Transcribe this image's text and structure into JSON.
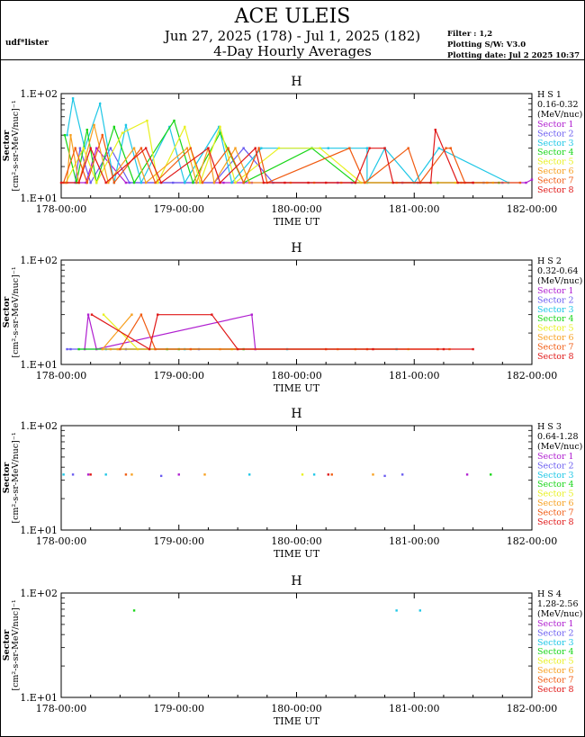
{
  "header": {
    "title": "ACE ULEIS",
    "date_range": "Jun 27, 2025 (178) - Jul  1, 2025 (182)",
    "subtitle": "4-Day Hourly Averages",
    "user": "udf*lister",
    "filter": "Filter : 1,2",
    "software": "Plotting S/W: V3.0",
    "plot_date": "Plotting date: Jul  2 2025 10:37"
  },
  "colors": {
    "Sector 1": "#b01fd0",
    "Sector 2": "#6a5cf0",
    "Sector 3": "#1ec7e6",
    "Sector 4": "#18d618",
    "Sector 5": "#e8f020",
    "Sector 6": "#f7a020",
    "Sector 7": "#f05a10",
    "Sector 8": "#e01818"
  },
  "chart_data": [
    {
      "type": "line",
      "title": "H",
      "xlabel": "TIME UT",
      "ylabel": "Sector\n[cm²-s-sr-MeV/nuc]⁻¹",
      "y_scale": "log",
      "ylim": [
        10,
        100
      ],
      "xlim": [
        178,
        182
      ],
      "x_ticks": [
        "178-00:00",
        "179-00:00",
        "180-00:00",
        "181-00:00",
        "182-00:00"
      ],
      "y_ticks": [
        "1.E+02",
        "1.E+01"
      ],
      "legend": {
        "placement": "right",
        "title": "H S 1",
        "energy": "0.16-0.32",
        "unit": "(MeV/nuc)"
      },
      "series": [
        {
          "name": "Sector 1",
          "points": [
            [
              178.04,
              14
            ],
            [
              178.21,
              14
            ],
            [
              178.3,
              30
            ],
            [
              178.55,
              14
            ],
            [
              179.05,
              14
            ],
            [
              179.38,
              14
            ],
            [
              179.62,
              14
            ],
            [
              180.35,
              14
            ],
            [
              180.9,
              14
            ],
            [
              181.5,
              14
            ],
            [
              181.95,
              14
            ],
            [
              182.0,
              15
            ]
          ]
        },
        {
          "name": "Sector 2",
          "points": [
            [
              178.12,
              14
            ],
            [
              178.16,
              30
            ],
            [
              178.25,
              14
            ],
            [
              178.42,
              30
            ],
            [
              178.58,
              14
            ],
            [
              178.95,
              14
            ],
            [
              179.3,
              14
            ],
            [
              179.55,
              30
            ],
            [
              179.8,
              14
            ],
            [
              180.47,
              14
            ],
            [
              181.03,
              14
            ],
            [
              181.59,
              14
            ],
            [
              181.75,
              14
            ]
          ]
        },
        {
          "name": "Sector 3",
          "points": [
            [
              178.05,
              40
            ],
            [
              178.1,
              90
            ],
            [
              178.2,
              30
            ],
            [
              178.33,
              80
            ],
            [
              178.45,
              14
            ],
            [
              178.55,
              50
            ],
            [
              178.68,
              14
            ],
            [
              178.92,
              48
            ],
            [
              179.05,
              14
            ],
            [
              179.34,
              48
            ],
            [
              179.45,
              14
            ],
            [
              179.7,
              30
            ],
            [
              180.27,
              30
            ],
            [
              180.6,
              30
            ],
            [
              180.6,
              14
            ],
            [
              180.75,
              30
            ],
            [
              181.0,
              14
            ],
            [
              181.21,
              30
            ],
            [
              181.8,
              14
            ]
          ]
        },
        {
          "name": "Sector 4",
          "points": [
            [
              178.03,
              40
            ],
            [
              178.13,
              14
            ],
            [
              178.22,
              45
            ],
            [
              178.3,
              14
            ],
            [
              178.45,
              48
            ],
            [
              178.62,
              14
            ],
            [
              178.96,
              55
            ],
            [
              179.12,
              14
            ],
            [
              179.35,
              42
            ],
            [
              179.55,
              14
            ],
            [
              180.13,
              30
            ],
            [
              180.5,
              14
            ],
            [
              181.2,
              14
            ],
            [
              181.72,
              14
            ]
          ]
        },
        {
          "name": "Sector 5",
          "points": [
            [
              178.04,
              14
            ],
            [
              178.19,
              30
            ],
            [
              178.3,
              14
            ],
            [
              178.52,
              42
            ],
            [
              178.73,
              55
            ],
            [
              178.82,
              14
            ],
            [
              179.05,
              48
            ],
            [
              179.18,
              14
            ],
            [
              179.35,
              48
            ],
            [
              179.48,
              14
            ],
            [
              179.85,
              30
            ],
            [
              180.2,
              30
            ],
            [
              180.55,
              14
            ],
            [
              181.35,
              14
            ],
            [
              181.67,
              14
            ]
          ]
        },
        {
          "name": "Sector 6",
          "points": [
            [
              178.05,
              14
            ],
            [
              178.08,
              40
            ],
            [
              178.15,
              14
            ],
            [
              178.28,
              50
            ],
            [
              178.4,
              14
            ],
            [
              178.62,
              30
            ],
            [
              178.72,
              14
            ],
            [
              179.07,
              30
            ],
            [
              179.15,
              14
            ],
            [
              179.25,
              30
            ],
            [
              179.3,
              14
            ],
            [
              179.48,
              30
            ],
            [
              179.6,
              14
            ],
            [
              179.95,
              14
            ],
            [
              180.15,
              14
            ],
            [
              180.38,
              14
            ],
            [
              180.85,
              14
            ],
            [
              181.4,
              14
            ],
            [
              181.62,
              14
            ]
          ]
        },
        {
          "name": "Sector 7",
          "points": [
            [
              178.02,
              14
            ],
            [
              178.12,
              30
            ],
            [
              178.22,
              14
            ],
            [
              178.35,
              40
            ],
            [
              178.45,
              14
            ],
            [
              178.68,
              30
            ],
            [
              178.8,
              14
            ],
            [
              179.1,
              30
            ],
            [
              179.2,
              14
            ],
            [
              179.42,
              30
            ],
            [
              179.55,
              14
            ],
            [
              179.68,
              30
            ],
            [
              179.75,
              14
            ],
            [
              180.45,
              30
            ],
            [
              180.58,
              14
            ],
            [
              180.95,
              30
            ],
            [
              181.05,
              14
            ],
            [
              181.27,
              30
            ],
            [
              181.31,
              30
            ],
            [
              181.43,
              14
            ],
            [
              181.9,
              14
            ]
          ]
        },
        {
          "name": "Sector 8",
          "points": [
            [
              178.0,
              14
            ],
            [
              178.15,
              14
            ],
            [
              178.25,
              30
            ],
            [
              178.38,
              14
            ],
            [
              178.72,
              30
            ],
            [
              178.85,
              14
            ],
            [
              179.25,
              30
            ],
            [
              179.35,
              14
            ],
            [
              179.65,
              30
            ],
            [
              179.72,
              14
            ],
            [
              179.9,
              14
            ],
            [
              180.1,
              14
            ],
            [
              180.25,
              14
            ],
            [
              180.5,
              14
            ],
            [
              180.62,
              30
            ],
            [
              180.75,
              30
            ],
            [
              180.82,
              14
            ],
            [
              181.14,
              14
            ],
            [
              181.18,
              45
            ],
            [
              181.37,
              14
            ],
            [
              181.5,
              14
            ]
          ]
        }
      ]
    },
    {
      "type": "line",
      "title": "H",
      "xlabel": "TIME UT",
      "ylabel": "Sector\n[cm²-s-sr-MeV/nuc]⁻¹",
      "y_scale": "log",
      "ylim": [
        10,
        100
      ],
      "xlim": [
        178,
        182
      ],
      "x_ticks": [
        "178-00:00",
        "179-00:00",
        "180-00:00",
        "181-00:00",
        "182-00:00"
      ],
      "y_ticks": [
        "1.E+02",
        "1.E+01"
      ],
      "legend": {
        "placement": "right",
        "title": "H S 2",
        "energy": "0.32-0.64",
        "unit": "(MeV/nuc)"
      },
      "series": [
        {
          "name": "Sector 1",
          "points": [
            [
              178.2,
              14
            ],
            [
              178.23,
              30
            ],
            [
              178.3,
              14
            ],
            [
              179.62,
              30
            ],
            [
              179.65,
              14
            ]
          ]
        },
        {
          "name": "Sector 2",
          "points": [
            [
              178.05,
              14
            ],
            [
              178.08,
              14
            ],
            [
              178.55,
              14
            ],
            [
              179.17,
              14
            ]
          ]
        },
        {
          "name": "Sector 3",
          "points": [
            [
              178.38,
              14
            ],
            [
              179.05,
              14
            ],
            [
              179.92,
              14
            ],
            [
              180.85,
              14
            ]
          ]
        },
        {
          "name": "Sector 4",
          "points": [
            [
              178.15,
              14
            ],
            [
              178.9,
              14
            ],
            [
              179.0,
              14
            ],
            [
              179.55,
              14
            ]
          ]
        },
        {
          "name": "Sector 5",
          "points": [
            [
              178.36,
              30
            ],
            [
              178.65,
              14
            ],
            [
              179.45,
              14
            ],
            [
              180.95,
              14
            ]
          ]
        },
        {
          "name": "Sector 6",
          "points": [
            [
              178.6,
              30
            ],
            [
              178.35,
              14
            ],
            [
              178.42,
              14
            ],
            [
              178.48,
              14
            ],
            [
              179.35,
              14
            ],
            [
              180.35,
              14
            ],
            [
              180.5,
              14
            ],
            [
              181.3,
              14
            ]
          ]
        },
        {
          "name": "Sector 7",
          "points": [
            [
              178.5,
              14
            ],
            [
              178.68,
              30
            ],
            [
              178.8,
              14
            ],
            [
              179.1,
              14
            ],
            [
              180.25,
              14
            ],
            [
              180.6,
              14
            ],
            [
              181.2,
              14
            ]
          ]
        },
        {
          "name": "Sector 8",
          "points": [
            [
              178.26,
              30
            ],
            [
              178.75,
              14
            ],
            [
              178.82,
              30
            ],
            [
              179.28,
              30
            ],
            [
              179.5,
              14
            ],
            [
              180.65,
              14
            ],
            [
              181.25,
              14
            ],
            [
              181.5,
              14
            ]
          ]
        }
      ]
    },
    {
      "type": "scatter",
      "title": "H",
      "xlabel": "TIME UT",
      "ylabel": "Sector\n[cm²-s-sr-MeV/nuc]⁻¹",
      "y_scale": "log",
      "ylim": [
        10,
        100
      ],
      "xlim": [
        178,
        182
      ],
      "x_ticks": [
        "178-00:00",
        "179-00:00",
        "180-00:00",
        "181-00:00",
        "182-00:00"
      ],
      "y_ticks": [
        "1.E+02",
        "1.E+01"
      ],
      "legend": {
        "placement": "right",
        "title": "H S 3",
        "energy": "0.64-1.28",
        "unit": "(MeV/nuc)"
      },
      "series": [
        {
          "name": "Sector 1",
          "points": [
            [
              178.23,
              34
            ],
            [
              179.0,
              34
            ],
            [
              181.45,
              34
            ]
          ]
        },
        {
          "name": "Sector 2",
          "points": [
            [
              178.1,
              34
            ],
            [
              178.85,
              33
            ],
            [
              180.75,
              33
            ],
            [
              180.9,
              34
            ]
          ]
        },
        {
          "name": "Sector 3",
          "points": [
            [
              178.02,
              34
            ],
            [
              178.38,
              34
            ],
            [
              179.6,
              34
            ],
            [
              180.15,
              34
            ]
          ]
        },
        {
          "name": "Sector 4",
          "points": [
            [
              181.65,
              34
            ]
          ]
        },
        {
          "name": "Sector 5",
          "points": [
            [
              180.05,
              34
            ]
          ]
        },
        {
          "name": "Sector 6",
          "points": [
            [
              178.6,
              34
            ],
            [
              179.22,
              34
            ],
            [
              180.65,
              34
            ]
          ]
        },
        {
          "name": "Sector 7",
          "points": [
            [
              178.55,
              34
            ],
            [
              180.3,
              34
            ]
          ]
        },
        {
          "name": "Sector 8",
          "points": [
            [
              178.25,
              34
            ],
            [
              180.27,
              34
            ]
          ]
        }
      ]
    },
    {
      "type": "scatter",
      "title": "H",
      "xlabel": "TIME UT",
      "ylabel": "Sector\n[cm²-s-sr-MeV/nuc]⁻¹",
      "y_scale": "log",
      "ylim": [
        10,
        100
      ],
      "xlim": [
        178,
        182
      ],
      "x_ticks": [
        "178-00:00",
        "179-00:00",
        "180-00:00",
        "181-00:00",
        "182-00:00"
      ],
      "y_ticks": [
        "1.E+02",
        "1.E+01"
      ],
      "legend": {
        "placement": "right",
        "title": "H S 4",
        "energy": "1.28-2.56",
        "unit": "(MeV/nuc)"
      },
      "series": [
        {
          "name": "Sector 1",
          "points": []
        },
        {
          "name": "Sector 2",
          "points": []
        },
        {
          "name": "Sector 3",
          "points": [
            [
              180.85,
              68
            ],
            [
              181.05,
              68
            ]
          ]
        },
        {
          "name": "Sector 4",
          "points": [
            [
              178.62,
              68
            ]
          ]
        },
        {
          "name": "Sector 5",
          "points": []
        },
        {
          "name": "Sector 6",
          "points": []
        },
        {
          "name": "Sector 7",
          "points": []
        },
        {
          "name": "Sector 8",
          "points": []
        }
      ]
    }
  ]
}
